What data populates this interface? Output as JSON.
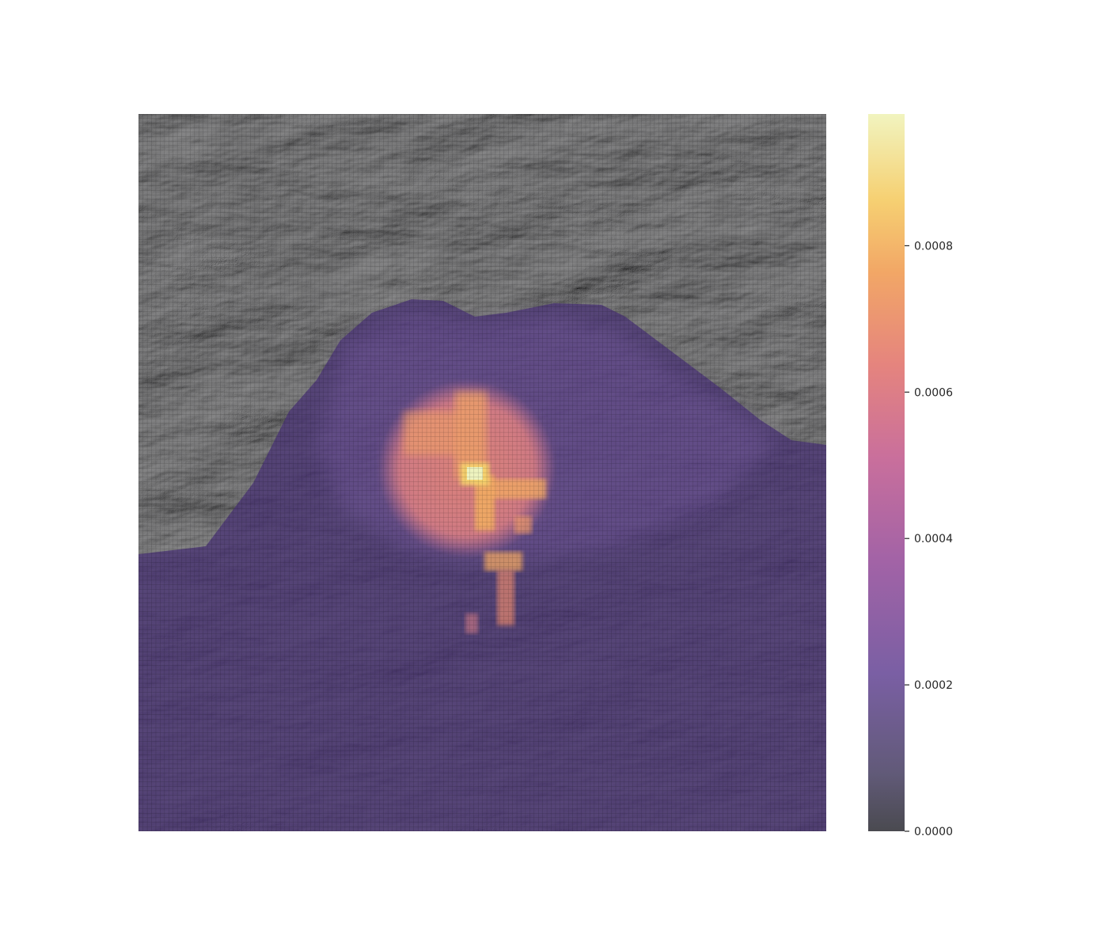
{
  "chart_data": {
    "type": "heatmap",
    "title": "",
    "xlabel": "",
    "ylabel": "",
    "axes_visible": false,
    "grid": true,
    "grid_cells_approx": [
      160,
      160
    ],
    "basemap": "grayscale hillshade terrain",
    "colormap": [
      "#555555",
      "#7b5fa6",
      "#c96ea0",
      "#eea26a",
      "#f7d36a",
      "#f3f6c0"
    ],
    "colorbar": {
      "range": [
        0.0,
        0.00098
      ],
      "ticks": [
        {
          "value": 0.0,
          "label": "0.0000"
        },
        {
          "value": 0.0002,
          "label": "0.0002"
        },
        {
          "value": 0.0004,
          "label": "0.0004"
        },
        {
          "value": 0.0006,
          "label": "0.0006"
        },
        {
          "value": 0.0008,
          "label": "0.0008"
        }
      ]
    },
    "hotspots": [
      {
        "name": "central peak",
        "value": 0.00095
      },
      {
        "name": "crater ring",
        "value": 0.00065
      },
      {
        "name": "southern streak",
        "value": 0.0007
      }
    ],
    "background_value": 0.00012
  }
}
